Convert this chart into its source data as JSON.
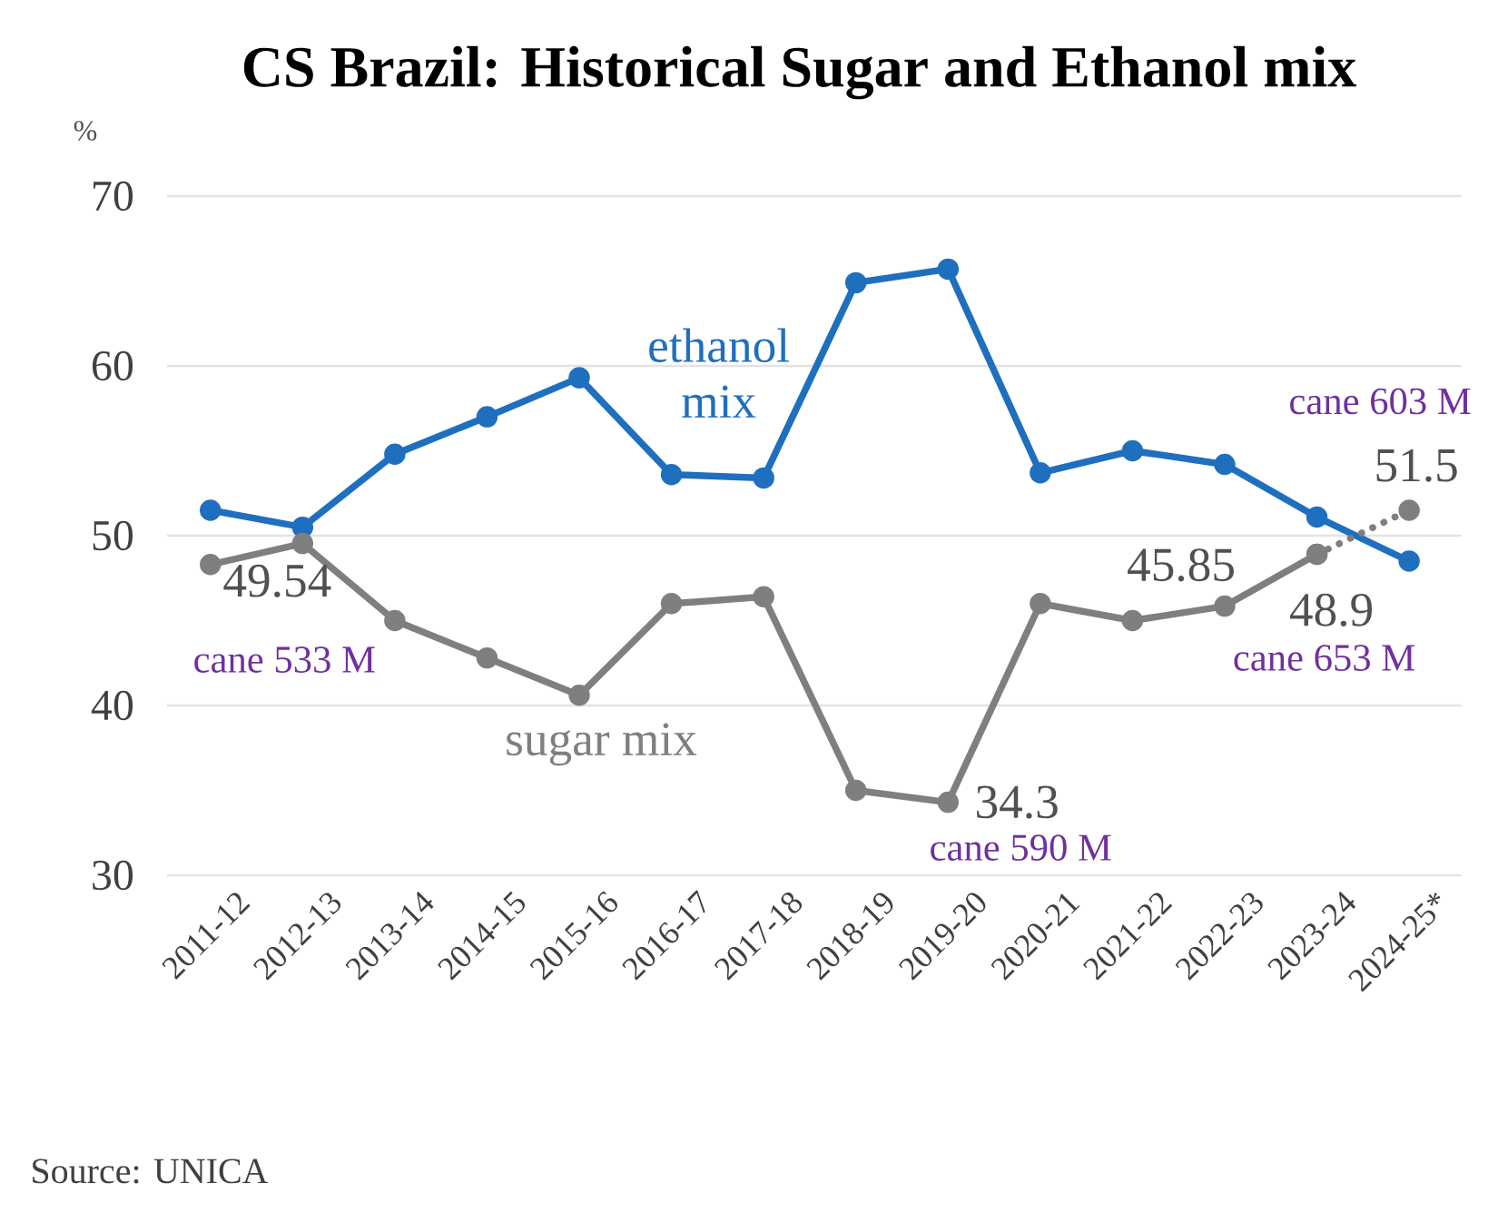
{
  "chart_data": {
    "type": "line",
    "title": "CS Brazil: Historical Sugar and Ethanol mix",
    "ylabel": "%",
    "categories": [
      "2011-12",
      "2012-13",
      "2013-14",
      "2014-15",
      "2015-16",
      "2016-17",
      "2017-18",
      "2018-19",
      "2019-20",
      "2020-21",
      "2021-22",
      "2022-23",
      "2023-24",
      "2024-25*"
    ],
    "series": [
      {
        "name": "ethanol mix",
        "color": "#1f6fbf",
        "values": [
          51.5,
          50.5,
          54.8,
          57.0,
          59.3,
          53.6,
          53.4,
          64.9,
          65.7,
          53.7,
          55.0,
          54.2,
          51.1,
          48.5
        ]
      },
      {
        "name": "sugar mix",
        "color": "#7f7f7f",
        "values": [
          48.3,
          49.54,
          45.0,
          42.8,
          40.6,
          46.0,
          46.4,
          35.0,
          34.3,
          46.0,
          45.0,
          45.85,
          48.9,
          null
        ],
        "value_labels": [
          null,
          "49.54",
          null,
          null,
          null,
          null,
          null,
          null,
          "34.3",
          null,
          null,
          "45.85",
          "48.9",
          null
        ]
      },
      {
        "color": "#7f7f7f",
        "line_style": "dotted",
        "values": [
          null,
          null,
          null,
          null,
          null,
          null,
          null,
          null,
          null,
          null,
          null,
          null,
          48.9,
          51.5
        ],
        "value_labels": [
          null,
          null,
          null,
          null,
          null,
          null,
          null,
          null,
          null,
          null,
          null,
          null,
          null,
          "51.5"
        ]
      }
    ],
    "ylim": [
      30,
      70
    ],
    "yticks": [
      30,
      40,
      50,
      60,
      70
    ],
    "grid": "y",
    "marker": "circle",
    "line_style": "solid",
    "annotations": [
      {
        "text": "cane 533 M",
        "x": "2012-13",
        "y": 49.54
      },
      {
        "text": "cane 590 M",
        "x": "2019-20",
        "y": 34.3
      },
      {
        "text": "cane 653 M",
        "x": "2023-24",
        "y": 48.9
      },
      {
        "text": "cane 603 M",
        "x": "2024-25*",
        "y": 51.5
      },
      "Source: UNICA"
    ]
  }
}
